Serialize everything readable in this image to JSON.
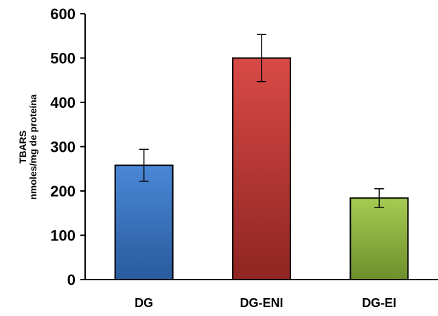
{
  "chart_data": {
    "type": "bar",
    "title": "",
    "xlabel": "",
    "ylabel_lines": [
      "TBARS",
      "nmoles/mg de proteína"
    ],
    "categories": [
      "DG",
      "DG-ENI",
      "DG-EI"
    ],
    "values": [
      258,
      500,
      184
    ],
    "error": [
      36,
      53,
      21
    ],
    "ylim": [
      0,
      600
    ],
    "yticks": [
      0,
      100,
      200,
      300,
      400,
      500,
      600
    ],
    "grid": false,
    "legend": "none",
    "colors": [
      {
        "top": "#4a87d6",
        "bottom": "#2a5b9e"
      },
      {
        "top": "#d94a46",
        "bottom": "#8f2522"
      },
      {
        "top": "#a6cc52",
        "bottom": "#6e8f2c"
      }
    ],
    "outline_color": "#000000"
  }
}
